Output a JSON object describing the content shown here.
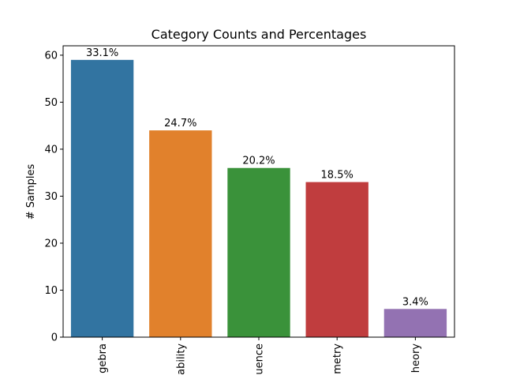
{
  "chart_data": {
    "type": "bar",
    "title": "Category Counts and Percentages",
    "xlabel": "",
    "ylabel": "# Samples",
    "categories": [
      "gebra",
      "ability",
      "uence",
      "metry",
      "heory"
    ],
    "values": [
      59,
      44,
      36,
      33,
      6
    ],
    "data_labels": [
      "33.1%",
      "24.7%",
      "20.2%",
      "18.5%",
      "3.4%"
    ],
    "colors": [
      "#3274a1",
      "#e1812c",
      "#3a923a",
      "#c03d3e",
      "#9372b2"
    ],
    "ylim": [
      0,
      62
    ],
    "yticks": [
      0,
      10,
      20,
      30,
      40,
      50,
      60
    ],
    "grid": false,
    "xtick_rotation": 90
  }
}
